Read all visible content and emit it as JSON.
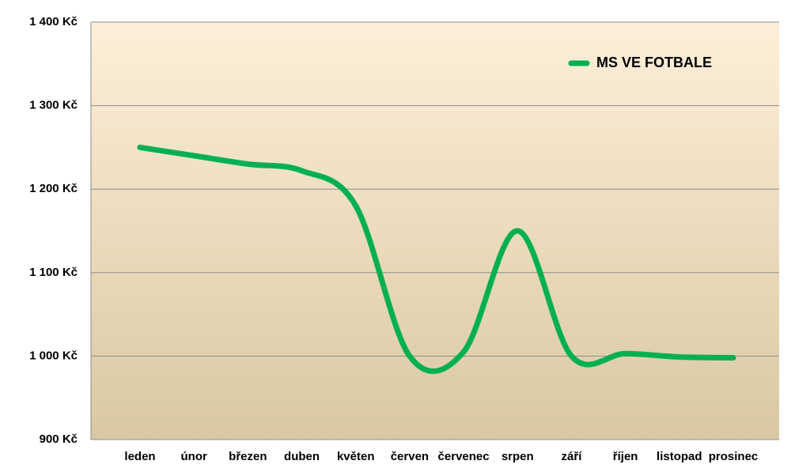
{
  "chart_data": {
    "type": "line",
    "categories": [
      "leden",
      "únor",
      "březen",
      "duben",
      "květen",
      "červen",
      "červenec",
      "srpen",
      "září",
      "říjen",
      "listopad",
      "prosinec"
    ],
    "series": [
      {
        "name": "MS VE FOTBALE",
        "color": "#00b050",
        "values": [
          1250,
          1240,
          1230,
          1222,
          1180,
          1000,
          1005,
          1150,
          1000,
          1003,
          999,
          998
        ]
      }
    ],
    "ylim": [
      900,
      1400
    ],
    "yticks": [
      {
        "value": 900,
        "label": "900 Kč"
      },
      {
        "value": 1000,
        "label": "1 000 Kč"
      },
      {
        "value": 1100,
        "label": "1 100 Kč"
      },
      {
        "value": 1200,
        "label": "1 200 Kč"
      },
      {
        "value": 1300,
        "label": "1 300 Kč"
      },
      {
        "value": 1400,
        "label": "1 400 Kč"
      }
    ],
    "grid": true,
    "legend": "top-right"
  }
}
